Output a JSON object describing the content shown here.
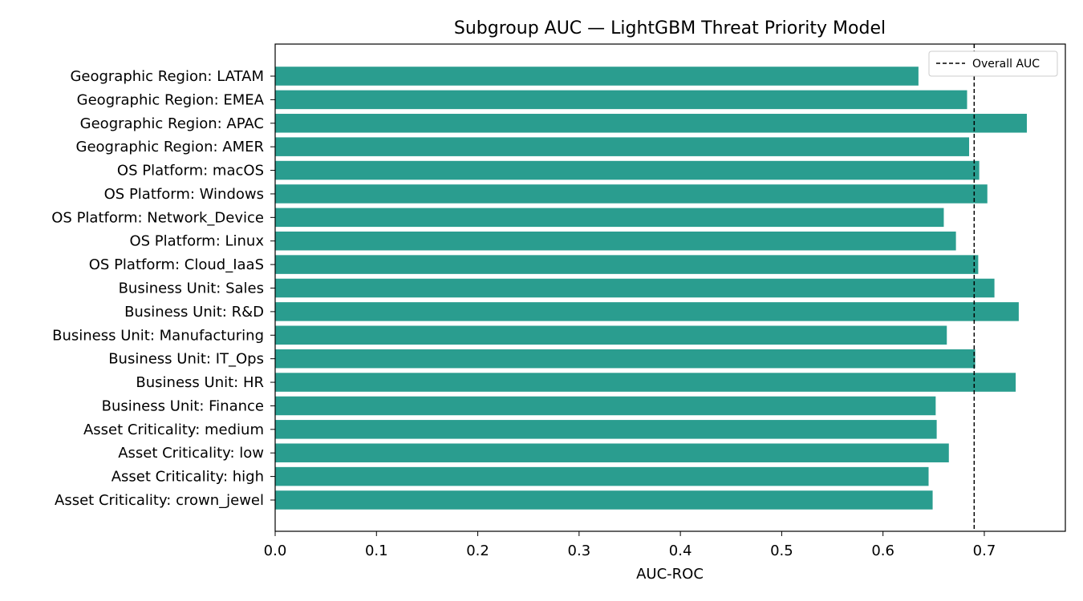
{
  "chart_data": {
    "type": "bar",
    "orientation": "horizontal",
    "title": "Subgroup AUC — LightGBM Threat Priority Model",
    "xlabel": "AUC-ROC",
    "ylabel": "",
    "xlim": [
      0.0,
      0.78
    ],
    "x_ticks": [
      "0.0",
      "0.1",
      "0.2",
      "0.3",
      "0.4",
      "0.5",
      "0.6",
      "0.7"
    ],
    "bar_color": "#2a9d8f",
    "categories": [
      "Asset Criticality: crown_jewel",
      "Asset Criticality: high",
      "Asset Criticality: low",
      "Asset Criticality: medium",
      "Business Unit: Finance",
      "Business Unit: HR",
      "Business Unit: IT_Ops",
      "Business Unit: Manufacturing",
      "Business Unit: R&D",
      "Business Unit: Sales",
      "OS Platform: Cloud_IaaS",
      "OS Platform: Linux",
      "OS Platform: Network_Device",
      "OS Platform: Windows",
      "OS Platform: macOS",
      "Geographic Region: AMER",
      "Geographic Region: APAC",
      "Geographic Region: EMEA",
      "Geographic Region: LATAM"
    ],
    "values": [
      0.649,
      0.645,
      0.665,
      0.653,
      0.652,
      0.731,
      0.691,
      0.663,
      0.734,
      0.71,
      0.694,
      0.672,
      0.66,
      0.703,
      0.695,
      0.685,
      0.742,
      0.683,
      0.635
    ],
    "reference_line": {
      "label": "Overall AUC",
      "value": 0.69,
      "style": "dashed",
      "color": "#000000"
    },
    "legend": {
      "position": "top-right",
      "entries": [
        "Overall AUC"
      ]
    },
    "grid": false
  }
}
